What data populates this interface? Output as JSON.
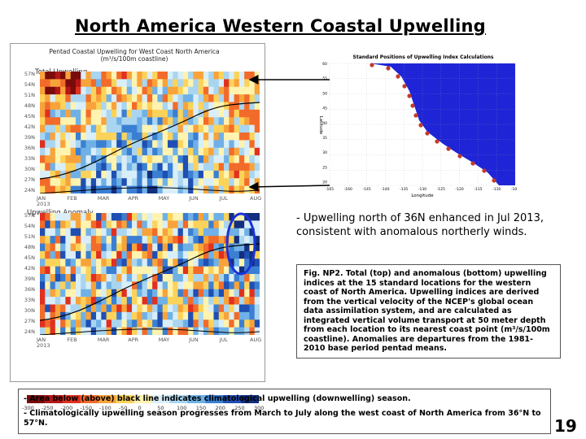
{
  "title": "North America Western Coastal Upwelling",
  "left_figure": {
    "header_line1": "Pentad Coastal Upwelling for West Coast North America",
    "header_line2": "(m³/s/100m coastline)",
    "top_label": "Total Upwelling",
    "bottom_label": "Upwelling Anomaly",
    "lat_ticks": [
      "57N",
      "54N",
      "51N",
      "48N",
      "45N",
      "42N",
      "39N",
      "36N",
      "33N",
      "30N",
      "27N",
      "24N"
    ],
    "month_ticks": [
      "JAN",
      "FEB",
      "MAR",
      "APR",
      "MAY",
      "JUN",
      "JUL",
      "AUG"
    ],
    "year_label": "2013",
    "colorbar_ticks": [
      "-300",
      "-250",
      "-200",
      "-150",
      "-100",
      "-50",
      "0",
      "50",
      "100",
      "150",
      "200",
      "250",
      "300"
    ]
  },
  "map": {
    "title": "Standard Positions of Upwelling Index Calculations",
    "ylabel": "Latitude",
    "xlabel": "Longitude",
    "lat_ticks": [
      "60",
      "55",
      "50",
      "45",
      "40",
      "35",
      "30",
      "25",
      "20"
    ],
    "lon_ticks": [
      "-165",
      "-160",
      "-145",
      "-140",
      "-135",
      "-130",
      "-125",
      "-120",
      "-115",
      "-110",
      "-105"
    ]
  },
  "note": "- Upwelling north of 36N enhanced in Jul 2013, consistent with anomalous northerly winds.",
  "caption": "Fig. NP2. Total (top) and anomalous (bottom) upwelling indices at the 15 standard locations for the western coast of North America. Upwelling indices are derived from the vertical velocity of the NCEP's global ocean data assimilation system, and are calculated as integrated vertical volume transport at 50 meter depth from each location to its nearest coast point (m³/s/100m coastline). Anomalies are departures from the 1981-2010 base period pentad means.",
  "bullets": [
    "- Area below (above) black line indicates climatological upwelling (downwelling) season.",
    "- Climatologically upwelling season progresses from March to July along the west coast of North America from 36°N to 57°N."
  ],
  "page_number": "19",
  "colors": {
    "map_ocean": "#1f24d6",
    "map_land": "#ffffff",
    "station_marker": "#c23a2a",
    "highlight_ellipse": "#1a33d6",
    "arrow": "#000000"
  }
}
